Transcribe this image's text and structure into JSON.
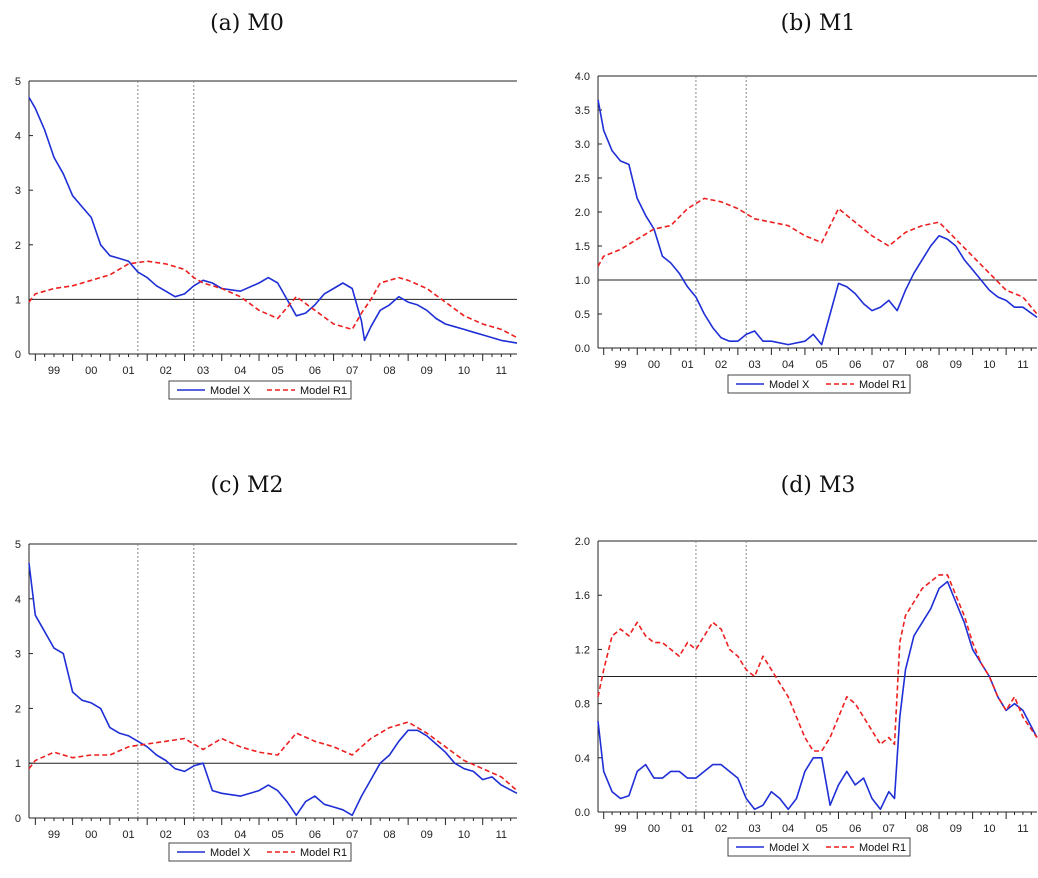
{
  "chart_data": [
    {
      "id": "a",
      "type": "line",
      "title": "(a) M0",
      "x_ticks": [
        "99",
        "00",
        "01",
        "02",
        "03",
        "04",
        "05",
        "06",
        "07",
        "08",
        "09",
        "10",
        "11"
      ],
      "xlim": [
        1998.83,
        2011.92
      ],
      "ylim": [
        0,
        5
      ],
      "y_ticks": [
        "0",
        "1",
        "2",
        "3",
        "4",
        "5"
      ],
      "reference_line": 1,
      "vertical_markers": [
        2001.75,
        2003.25
      ],
      "legend": "bottom-center",
      "grid": false,
      "colors": {
        "Model X": "#1f2fd6",
        "Model R1": "#ee1f1f"
      },
      "series": [
        {
          "name": "Model X",
          "style": "solid",
          "x": [
            1998.83,
            1999.0,
            1999.25,
            1999.5,
            1999.75,
            2000.0,
            2000.25,
            2000.5,
            2000.75,
            2001.0,
            2001.25,
            2001.5,
            2001.75,
            2002.0,
            2002.25,
            2002.5,
            2002.75,
            2003.0,
            2003.25,
            2003.5,
            2003.75,
            2004.0,
            2004.5,
            2005.0,
            2005.25,
            2005.5,
            2005.75,
            2006.0,
            2006.25,
            2006.5,
            2006.75,
            2007.0,
            2007.25,
            2007.5,
            2007.75,
            2007.83,
            2008.0,
            2008.25,
            2008.5,
            2008.75,
            2009.0,
            2009.25,
            2009.5,
            2009.75,
            2010.0,
            2010.25,
            2010.5,
            2010.75,
            2011.0,
            2011.25,
            2011.5,
            2011.92
          ],
          "y": [
            4.7,
            4.5,
            4.1,
            3.6,
            3.3,
            2.9,
            2.7,
            2.5,
            2.0,
            1.8,
            1.75,
            1.7,
            1.5,
            1.4,
            1.25,
            1.15,
            1.05,
            1.1,
            1.25,
            1.35,
            1.3,
            1.2,
            1.15,
            1.3,
            1.4,
            1.3,
            1.0,
            0.7,
            0.75,
            0.9,
            1.1,
            1.2,
            1.3,
            1.2,
            0.6,
            0.25,
            0.5,
            0.8,
            0.9,
            1.05,
            0.95,
            0.9,
            0.8,
            0.65,
            0.55,
            0.5,
            0.45,
            0.4,
            0.35,
            0.3,
            0.25,
            0.2
          ]
        },
        {
          "name": "Model R1",
          "style": "dashed",
          "x": [
            1998.83,
            1999.0,
            1999.5,
            2000.0,
            2000.5,
            2001.0,
            2001.5,
            2002.0,
            2002.5,
            2003.0,
            2003.25,
            2003.5,
            2004.0,
            2004.5,
            2005.0,
            2005.5,
            2006.0,
            2006.5,
            2007.0,
            2007.5,
            2007.75,
            2008.0,
            2008.25,
            2008.5,
            2008.75,
            2009.0,
            2009.5,
            2010.0,
            2010.5,
            2011.0,
            2011.5,
            2011.92
          ],
          "y": [
            0.95,
            1.1,
            1.2,
            1.25,
            1.35,
            1.45,
            1.65,
            1.7,
            1.65,
            1.55,
            1.4,
            1.3,
            1.2,
            1.05,
            0.8,
            0.65,
            1.05,
            0.8,
            0.55,
            0.45,
            0.75,
            1.0,
            1.3,
            1.35,
            1.4,
            1.35,
            1.2,
            0.95,
            0.7,
            0.55,
            0.45,
            0.3
          ]
        }
      ],
      "legend_entries": [
        "Model X",
        "Model R1"
      ]
    },
    {
      "id": "b",
      "type": "line",
      "title": "(b) M1",
      "x_ticks": [
        "99",
        "00",
        "01",
        "02",
        "03",
        "04",
        "05",
        "06",
        "07",
        "08",
        "09",
        "10",
        "11"
      ],
      "xlim": [
        1998.83,
        2011.92
      ],
      "ylim": [
        0,
        4
      ],
      "y_ticks": [
        "0.0",
        "0.5",
        "1.0",
        "1.5",
        "2.0",
        "2.5",
        "3.0",
        "3.5",
        "4.0"
      ],
      "reference_line": 1,
      "vertical_markers": [
        2001.75,
        2003.25
      ],
      "legend": "bottom-center",
      "grid": false,
      "colors": {
        "Model X": "#1f2fd6",
        "Model R1": "#ee1f1f"
      },
      "series": [
        {
          "name": "Model X",
          "style": "solid",
          "x": [
            1998.83,
            1999.0,
            1999.25,
            1999.5,
            1999.75,
            2000.0,
            2000.25,
            2000.5,
            2000.75,
            2001.0,
            2001.25,
            2001.5,
            2001.75,
            2002.0,
            2002.25,
            2002.5,
            2002.75,
            2003.0,
            2003.25,
            2003.5,
            2003.75,
            2004.0,
            2004.5,
            2005.0,
            2005.25,
            2005.5,
            2005.75,
            2006.0,
            2006.25,
            2006.5,
            2006.75,
            2007.0,
            2007.25,
            2007.5,
            2007.75,
            2008.0,
            2008.25,
            2008.5,
            2008.75,
            2009.0,
            2009.25,
            2009.5,
            2009.75,
            2010.0,
            2010.25,
            2010.5,
            2010.75,
            2011.0,
            2011.25,
            2011.5,
            2011.92
          ],
          "y": [
            3.65,
            3.2,
            2.9,
            2.75,
            2.7,
            2.2,
            1.95,
            1.75,
            1.35,
            1.25,
            1.1,
            0.9,
            0.75,
            0.5,
            0.3,
            0.15,
            0.1,
            0.1,
            0.2,
            0.25,
            0.1,
            0.1,
            0.05,
            0.1,
            0.2,
            0.05,
            0.5,
            0.95,
            0.9,
            0.8,
            0.65,
            0.55,
            0.6,
            0.7,
            0.55,
            0.85,
            1.1,
            1.3,
            1.5,
            1.65,
            1.6,
            1.5,
            1.3,
            1.15,
            1.0,
            0.85,
            0.75,
            0.7,
            0.6,
            0.6,
            0.45
          ]
        },
        {
          "name": "Model R1",
          "style": "dashed",
          "x": [
            1998.83,
            1999.0,
            1999.5,
            2000.0,
            2000.5,
            2001.0,
            2001.5,
            2002.0,
            2002.5,
            2003.0,
            2003.5,
            2004.0,
            2004.5,
            2005.0,
            2005.5,
            2006.0,
            2006.5,
            2007.0,
            2007.5,
            2008.0,
            2008.5,
            2009.0,
            2009.5,
            2010.0,
            2010.5,
            2011.0,
            2011.5,
            2011.92
          ],
          "y": [
            1.2,
            1.35,
            1.45,
            1.6,
            1.75,
            1.8,
            2.05,
            2.2,
            2.15,
            2.05,
            1.9,
            1.85,
            1.8,
            1.65,
            1.55,
            2.05,
            1.85,
            1.65,
            1.5,
            1.7,
            1.8,
            1.85,
            1.6,
            1.35,
            1.1,
            0.85,
            0.75,
            0.5
          ]
        }
      ],
      "legend_entries": [
        "Model X",
        "Model R1"
      ]
    },
    {
      "id": "c",
      "type": "line",
      "title": "(c) M2",
      "x_ticks": [
        "99",
        "00",
        "01",
        "02",
        "03",
        "04",
        "05",
        "06",
        "07",
        "08",
        "09",
        "10",
        "11"
      ],
      "xlim": [
        1998.83,
        2011.92
      ],
      "ylim": [
        0,
        5
      ],
      "y_ticks": [
        "0",
        "1",
        "2",
        "3",
        "4",
        "5"
      ],
      "reference_line": 1,
      "vertical_markers": [
        2001.75,
        2003.25
      ],
      "legend": "bottom-center",
      "grid": false,
      "colors": {
        "Model X": "#1f2fd6",
        "Model R1": "#ee1f1f"
      },
      "series": [
        {
          "name": "Model X",
          "style": "solid",
          "x": [
            1998.83,
            1999.0,
            1999.25,
            1999.5,
            1999.75,
            2000.0,
            2000.25,
            2000.5,
            2000.75,
            2001.0,
            2001.25,
            2001.5,
            2001.75,
            2002.0,
            2002.25,
            2002.5,
            2002.75,
            2003.0,
            2003.25,
            2003.5,
            2003.75,
            2004.0,
            2004.5,
            2005.0,
            2005.25,
            2005.5,
            2005.75,
            2006.0,
            2006.25,
            2006.5,
            2006.75,
            2007.0,
            2007.25,
            2007.5,
            2007.75,
            2008.0,
            2008.25,
            2008.5,
            2008.75,
            2009.0,
            2009.25,
            2009.5,
            2009.75,
            2010.0,
            2010.25,
            2010.5,
            2010.75,
            2011.0,
            2011.25,
            2011.5,
            2011.92
          ],
          "y": [
            4.65,
            3.7,
            3.4,
            3.1,
            3.0,
            2.3,
            2.15,
            2.1,
            2.0,
            1.65,
            1.55,
            1.5,
            1.4,
            1.3,
            1.15,
            1.05,
            0.9,
            0.85,
            0.95,
            1.0,
            0.5,
            0.45,
            0.4,
            0.5,
            0.6,
            0.5,
            0.3,
            0.05,
            0.3,
            0.4,
            0.25,
            0.2,
            0.15,
            0.05,
            0.4,
            0.7,
            1.0,
            1.15,
            1.4,
            1.6,
            1.6,
            1.5,
            1.35,
            1.2,
            1.0,
            0.9,
            0.85,
            0.7,
            0.75,
            0.6,
            0.45
          ]
        },
        {
          "name": "Model R1",
          "style": "dashed",
          "x": [
            1998.83,
            1999.0,
            1999.5,
            2000.0,
            2000.5,
            2001.0,
            2001.5,
            2002.0,
            2002.5,
            2003.0,
            2003.5,
            2004.0,
            2004.5,
            2005.0,
            2005.5,
            2006.0,
            2006.5,
            2007.0,
            2007.5,
            2008.0,
            2008.5,
            2009.0,
            2009.5,
            2010.0,
            2010.5,
            2011.0,
            2011.5,
            2011.92
          ],
          "y": [
            0.9,
            1.05,
            1.2,
            1.1,
            1.15,
            1.15,
            1.3,
            1.35,
            1.4,
            1.45,
            1.25,
            1.45,
            1.3,
            1.2,
            1.15,
            1.55,
            1.4,
            1.3,
            1.15,
            1.45,
            1.65,
            1.75,
            1.55,
            1.3,
            1.05,
            0.9,
            0.75,
            0.5
          ]
        }
      ],
      "legend_entries": [
        "Model X",
        "Model R1"
      ]
    },
    {
      "id": "d",
      "type": "line",
      "title": "(d) M3",
      "x_ticks": [
        "99",
        "00",
        "01",
        "02",
        "03",
        "04",
        "05",
        "06",
        "07",
        "08",
        "09",
        "10",
        "11"
      ],
      "xlim": [
        1998.83,
        2011.92
      ],
      "ylim": [
        0,
        2
      ],
      "y_ticks": [
        "0.0",
        "0.4",
        "0.8",
        "1.2",
        "1.6",
        "2.0"
      ],
      "reference_line": 1,
      "vertical_markers": [
        2001.75,
        2003.25
      ],
      "legend": "bottom-center",
      "grid": false,
      "colors": {
        "Model X": "#1f2fd6",
        "Model R1": "#ee1f1f"
      },
      "series": [
        {
          "name": "Model X",
          "style": "solid",
          "x": [
            1998.83,
            1999.0,
            1999.25,
            1999.5,
            1999.75,
            2000.0,
            2000.25,
            2000.5,
            2000.75,
            2001.0,
            2001.25,
            2001.5,
            2001.75,
            2002.0,
            2002.25,
            2002.5,
            2002.75,
            2003.0,
            2003.25,
            2003.5,
            2003.75,
            2004.0,
            2004.25,
            2004.5,
            2004.75,
            2005.0,
            2005.25,
            2005.5,
            2005.75,
            2006.0,
            2006.25,
            2006.5,
            2006.75,
            2007.0,
            2007.25,
            2007.5,
            2007.67,
            2007.83,
            2008.0,
            2008.25,
            2008.5,
            2008.75,
            2009.0,
            2009.25,
            2009.5,
            2009.75,
            2010.0,
            2010.25,
            2010.5,
            2010.75,
            2011.0,
            2011.25,
            2011.5,
            2011.92
          ],
          "y": [
            0.67,
            0.3,
            0.15,
            0.1,
            0.12,
            0.3,
            0.35,
            0.25,
            0.25,
            0.3,
            0.3,
            0.25,
            0.25,
            0.3,
            0.35,
            0.35,
            0.3,
            0.25,
            0.1,
            0.02,
            0.05,
            0.15,
            0.1,
            0.02,
            0.1,
            0.3,
            0.4,
            0.4,
            0.05,
            0.2,
            0.3,
            0.2,
            0.25,
            0.1,
            0.02,
            0.15,
            0.1,
            0.7,
            1.05,
            1.3,
            1.4,
            1.5,
            1.65,
            1.7,
            1.55,
            1.4,
            1.2,
            1.1,
            1.0,
            0.85,
            0.75,
            0.8,
            0.75,
            0.55
          ]
        },
        {
          "name": "Model R1",
          "style": "dashed",
          "x": [
            1998.83,
            1999.0,
            1999.25,
            1999.5,
            1999.75,
            2000.0,
            2000.25,
            2000.5,
            2000.75,
            2001.0,
            2001.25,
            2001.5,
            2001.75,
            2002.0,
            2002.25,
            2002.5,
            2002.75,
            2003.0,
            2003.25,
            2003.5,
            2003.75,
            2004.0,
            2004.25,
            2004.5,
            2004.75,
            2005.0,
            2005.25,
            2005.5,
            2005.75,
            2006.0,
            2006.25,
            2006.5,
            2006.75,
            2007.0,
            2007.25,
            2007.5,
            2007.67,
            2007.83,
            2008.0,
            2008.25,
            2008.5,
            2008.75,
            2009.0,
            2009.25,
            2009.5,
            2009.75,
            2010.0,
            2010.25,
            2010.5,
            2010.75,
            2011.0,
            2011.25,
            2011.5,
            2011.92
          ],
          "y": [
            0.85,
            1.05,
            1.3,
            1.35,
            1.3,
            1.4,
            1.3,
            1.25,
            1.25,
            1.2,
            1.15,
            1.25,
            1.2,
            1.3,
            1.4,
            1.35,
            1.2,
            1.15,
            1.05,
            1.0,
            1.15,
            1.05,
            0.95,
            0.85,
            0.7,
            0.55,
            0.45,
            0.45,
            0.55,
            0.7,
            0.85,
            0.8,
            0.7,
            0.6,
            0.5,
            0.55,
            0.5,
            1.25,
            1.45,
            1.55,
            1.65,
            1.7,
            1.75,
            1.75,
            1.6,
            1.45,
            1.25,
            1.1,
            1.0,
            0.85,
            0.75,
            0.85,
            0.7,
            0.55
          ]
        }
      ],
      "legend_entries": [
        "Model X",
        "Model R1"
      ]
    }
  ]
}
